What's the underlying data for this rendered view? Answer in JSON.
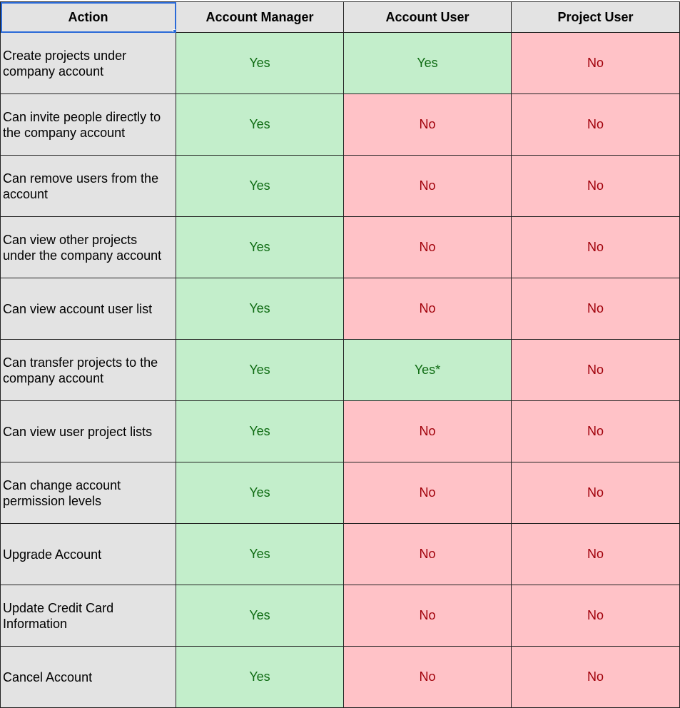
{
  "header": {
    "action": "Action",
    "account_manager": "Account Manager",
    "account_user": "Account User",
    "project_user": "Project User"
  },
  "colors": {
    "yes_bg": "#c3eecb",
    "yes_text": "#0e6b12",
    "no_bg": "#ffc2c7",
    "no_text": "#a0000a",
    "label_bg": "#e3e3e3",
    "selection": "#2a6ad8"
  },
  "rows": [
    {
      "action": "Create projects under company account",
      "account_manager": "Yes",
      "account_user": "Yes",
      "project_user": "No"
    },
    {
      "action": "Can invite people directly to the company account",
      "account_manager": "Yes",
      "account_user": "No",
      "project_user": "No"
    },
    {
      "action": "Can remove users from the account",
      "account_manager": "Yes",
      "account_user": "No",
      "project_user": "No"
    },
    {
      "action": "Can view other projects under the company account",
      "account_manager": "Yes",
      "account_user": "No",
      "project_user": "No"
    },
    {
      "action": "Can view account user list",
      "account_manager": "Yes",
      "account_user": "No",
      "project_user": "No"
    },
    {
      "action": "Can transfer projects to the company account",
      "account_manager": "Yes",
      "account_user": "Yes*",
      "project_user": "No"
    },
    {
      "action": "Can view user project lists",
      "account_manager": "Yes",
      "account_user": "No",
      "project_user": "No"
    },
    {
      "action": "Can change account permission levels",
      "account_manager": "Yes",
      "account_user": "No",
      "project_user": "No"
    },
    {
      "action": "Upgrade Account",
      "account_manager": "Yes",
      "account_user": "No",
      "project_user": "No"
    },
    {
      "action": "Update Credit Card Information",
      "account_manager": "Yes",
      "account_user": "No",
      "project_user": "No"
    },
    {
      "action": "Cancel Account",
      "account_manager": "Yes",
      "account_user": "No",
      "project_user": "No"
    }
  ]
}
